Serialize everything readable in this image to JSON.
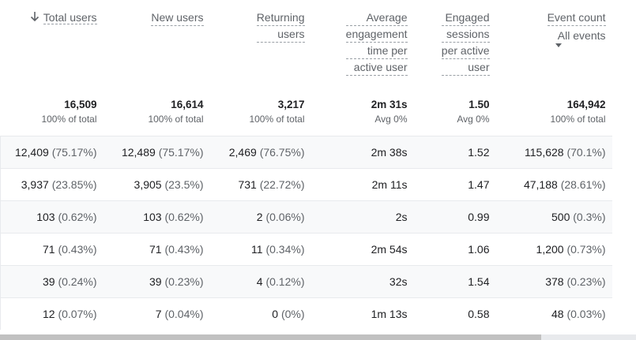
{
  "columns": [
    {
      "lines": [
        "Total users"
      ],
      "sorted": true
    },
    {
      "lines": [
        "New users"
      ]
    },
    {
      "lines": [
        "Returning",
        "users"
      ]
    },
    {
      "lines": [
        "Average",
        "engagement",
        "time per",
        "active user"
      ]
    },
    {
      "lines": [
        "Engaged",
        "sessions",
        "per active",
        "user"
      ]
    },
    {
      "lines": [
        "Event count"
      ],
      "dropdown": "All events"
    }
  ],
  "totals": [
    {
      "value": "16,509",
      "sub": "100% of total"
    },
    {
      "value": "16,614",
      "sub": "100% of total"
    },
    {
      "value": "3,217",
      "sub": "100% of total"
    },
    {
      "value": "2m 31s",
      "sub": "Avg 0%"
    },
    {
      "value": "1.50",
      "sub": "Avg 0%"
    },
    {
      "value": "164,942",
      "sub": "100% of total"
    }
  ],
  "rows": [
    [
      {
        "v": "12,409",
        "p": "(75.17%)"
      },
      {
        "v": "12,489",
        "p": "(75.17%)"
      },
      {
        "v": "2,469",
        "p": "(76.75%)"
      },
      {
        "v": "2m 38s"
      },
      {
        "v": "1.52"
      },
      {
        "v": "115,628",
        "p": "(70.1%)"
      }
    ],
    [
      {
        "v": "3,937",
        "p": "(23.85%)"
      },
      {
        "v": "3,905",
        "p": "(23.5%)"
      },
      {
        "v": "731",
        "p": "(22.72%)"
      },
      {
        "v": "2m 11s"
      },
      {
        "v": "1.47"
      },
      {
        "v": "47,188",
        "p": "(28.61%)"
      }
    ],
    [
      {
        "v": "103",
        "p": "(0.62%)"
      },
      {
        "v": "103",
        "p": "(0.62%)"
      },
      {
        "v": "2",
        "p": "(0.06%)"
      },
      {
        "v": "2s"
      },
      {
        "v": "0.99"
      },
      {
        "v": "500",
        "p": "(0.3%)"
      }
    ],
    [
      {
        "v": "71",
        "p": "(0.43%)"
      },
      {
        "v": "71",
        "p": "(0.43%)"
      },
      {
        "v": "11",
        "p": "(0.34%)"
      },
      {
        "v": "2m 54s"
      },
      {
        "v": "1.06"
      },
      {
        "v": "1,200",
        "p": "(0.73%)"
      }
    ],
    [
      {
        "v": "39",
        "p": "(0.24%)"
      },
      {
        "v": "39",
        "p": "(0.23%)"
      },
      {
        "v": "4",
        "p": "(0.12%)"
      },
      {
        "v": "32s"
      },
      {
        "v": "1.54"
      },
      {
        "v": "378",
        "p": "(0.23%)"
      }
    ],
    [
      {
        "v": "12",
        "p": "(0.07%)"
      },
      {
        "v": "7",
        "p": "(0.04%)"
      },
      {
        "v": "0",
        "p": "(0%)"
      },
      {
        "v": "1m 13s"
      },
      {
        "v": "0.58"
      },
      {
        "v": "48",
        "p": "(0.03%)"
      }
    ]
  ],
  "icons": {
    "sort": "arrow-down-icon",
    "dropdown": "caret-down-icon"
  }
}
